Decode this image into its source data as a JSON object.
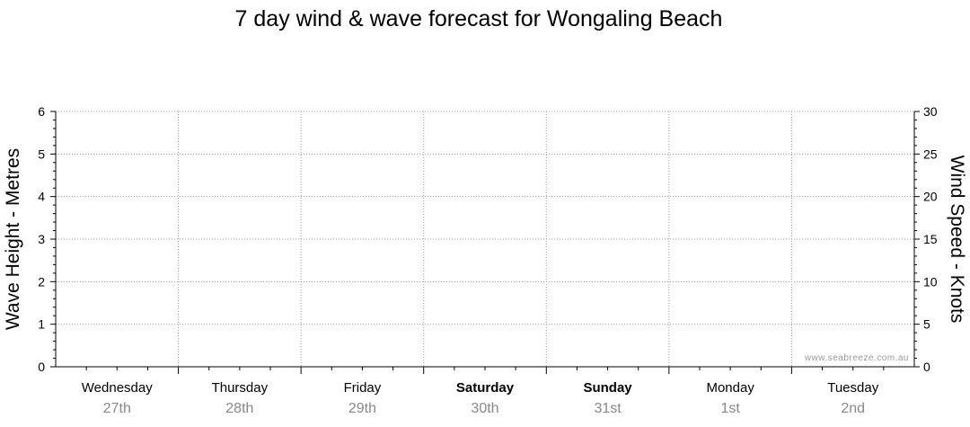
{
  "chart_data": {
    "type": "line",
    "title": "7 day wind & wave forecast for Wongaling Beach",
    "y_left": {
      "label": "Wave Height - Metres",
      "range": [
        0,
        6
      ],
      "ticks": [
        "0",
        "1",
        "2",
        "3",
        "4",
        "5",
        "6"
      ]
    },
    "y_right": {
      "label": "Wind Speed - Knots",
      "range": [
        0,
        30
      ],
      "ticks": [
        "0",
        "5",
        "10",
        "15",
        "20",
        "25",
        "30"
      ]
    },
    "days": [
      {
        "name": "Wednesday",
        "date": "27th",
        "bold": false
      },
      {
        "name": "Thursday",
        "date": "28th",
        "bold": false
      },
      {
        "name": "Friday",
        "date": "29th",
        "bold": false
      },
      {
        "name": "Saturday",
        "date": "30th",
        "bold": true
      },
      {
        "name": "Sunday",
        "date": "31st",
        "bold": true
      },
      {
        "name": "Monday",
        "date": "1st",
        "bold": false
      },
      {
        "name": "Tuesday",
        "date": "2nd",
        "bold": false
      }
    ],
    "series": [],
    "grid": true,
    "watermark": "www.seabreeze.com.au"
  }
}
